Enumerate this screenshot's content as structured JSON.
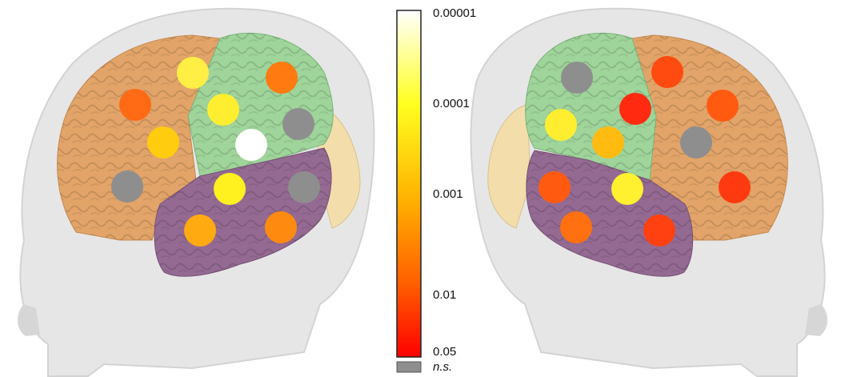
{
  "colorbar": {
    "ticks": [
      "0.00001",
      "0.0001",
      "0.001",
      "0.01",
      "0.05"
    ],
    "ns_label": "n.s.",
    "ns_color": "#8e8e8e",
    "gradient": [
      "#ffffff",
      "#ffff20",
      "#ffb000",
      "#ff5a00",
      "#ff0000"
    ]
  },
  "regions": {
    "frontal": "#e2a468",
    "central": "#9fd49a",
    "temporal": "#946a92",
    "occipital": "#f3deab",
    "head": "#e7e7e7"
  },
  "left_view": {
    "electrodes": [
      {
        "color": "#ffee44"
      },
      {
        "color": "#ff7a10"
      },
      {
        "color": "#ff6a14"
      },
      {
        "color": "#ffee30"
      },
      {
        "color": "#ffcc10"
      },
      {
        "color": "#ffffff"
      },
      {
        "color": "#8e8e8e"
      },
      {
        "color": "#8e8e8e"
      },
      {
        "color": "#fff020"
      },
      {
        "color": "#8e8e8e"
      },
      {
        "color": "#ffaa10"
      },
      {
        "color": "#ff8a10"
      }
    ]
  },
  "right_view": {
    "electrodes": [
      {
        "color": "#8e8e8e"
      },
      {
        "color": "#ff4a10"
      },
      {
        "color": "#ff2a10"
      },
      {
        "color": "#ff5a10"
      },
      {
        "color": "#ffee30"
      },
      {
        "color": "#ffbb10"
      },
      {
        "color": "#8e8e8e"
      },
      {
        "color": "#ff5a10"
      },
      {
        "color": "#fff030"
      },
      {
        "color": "#ff3a10"
      },
      {
        "color": "#ff7010"
      },
      {
        "color": "#ff4010"
      }
    ]
  }
}
